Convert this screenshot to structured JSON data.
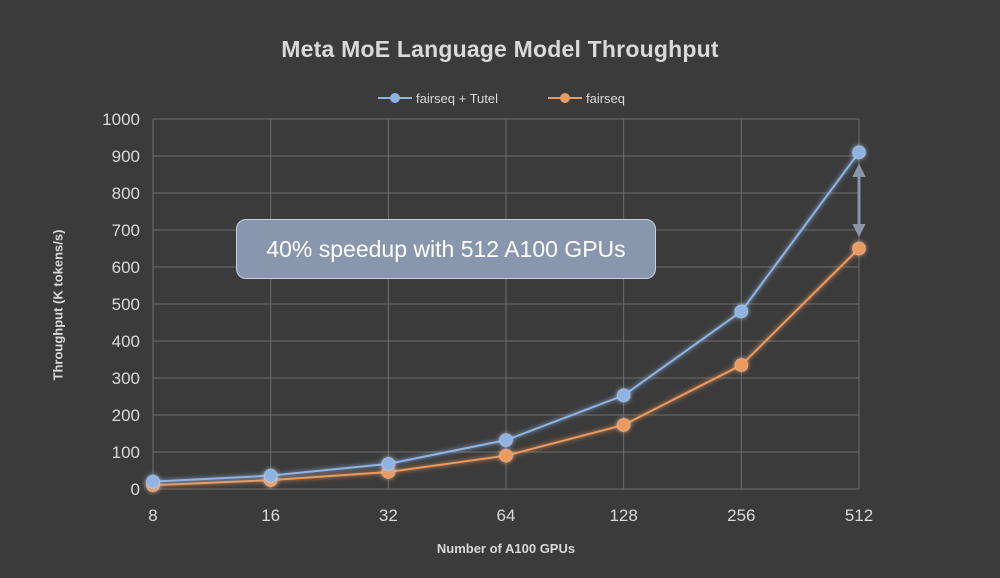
{
  "chart_data": {
    "type": "line",
    "title": "Meta MoE Language Model Throughput",
    "xlabel": "Number of A100 GPUs",
    "ylabel": "Throughput (K tokens/s)",
    "categories": [
      "8",
      "16",
      "32",
      "64",
      "128",
      "256",
      "512"
    ],
    "series": [
      {
        "name": "fairseq + Tutel",
        "color": "#8fb4e3",
        "values": [
          20,
          36,
          68,
          132,
          253,
          480,
          910
        ]
      },
      {
        "name": "fairseq",
        "color": "#ec9a5e",
        "values": [
          10,
          24,
          46,
          90,
          173,
          335,
          650
        ]
      }
    ],
    "ylim": [
      0,
      1000
    ],
    "yticks": [
      "0",
      "100",
      "200",
      "300",
      "400",
      "500",
      "600",
      "700",
      "800",
      "900",
      "1000"
    ],
    "grid": true,
    "legend": "top-center",
    "annotation": "40% speedup with 512 A100 GPUs",
    "arrow_color": "#8a95a8"
  }
}
